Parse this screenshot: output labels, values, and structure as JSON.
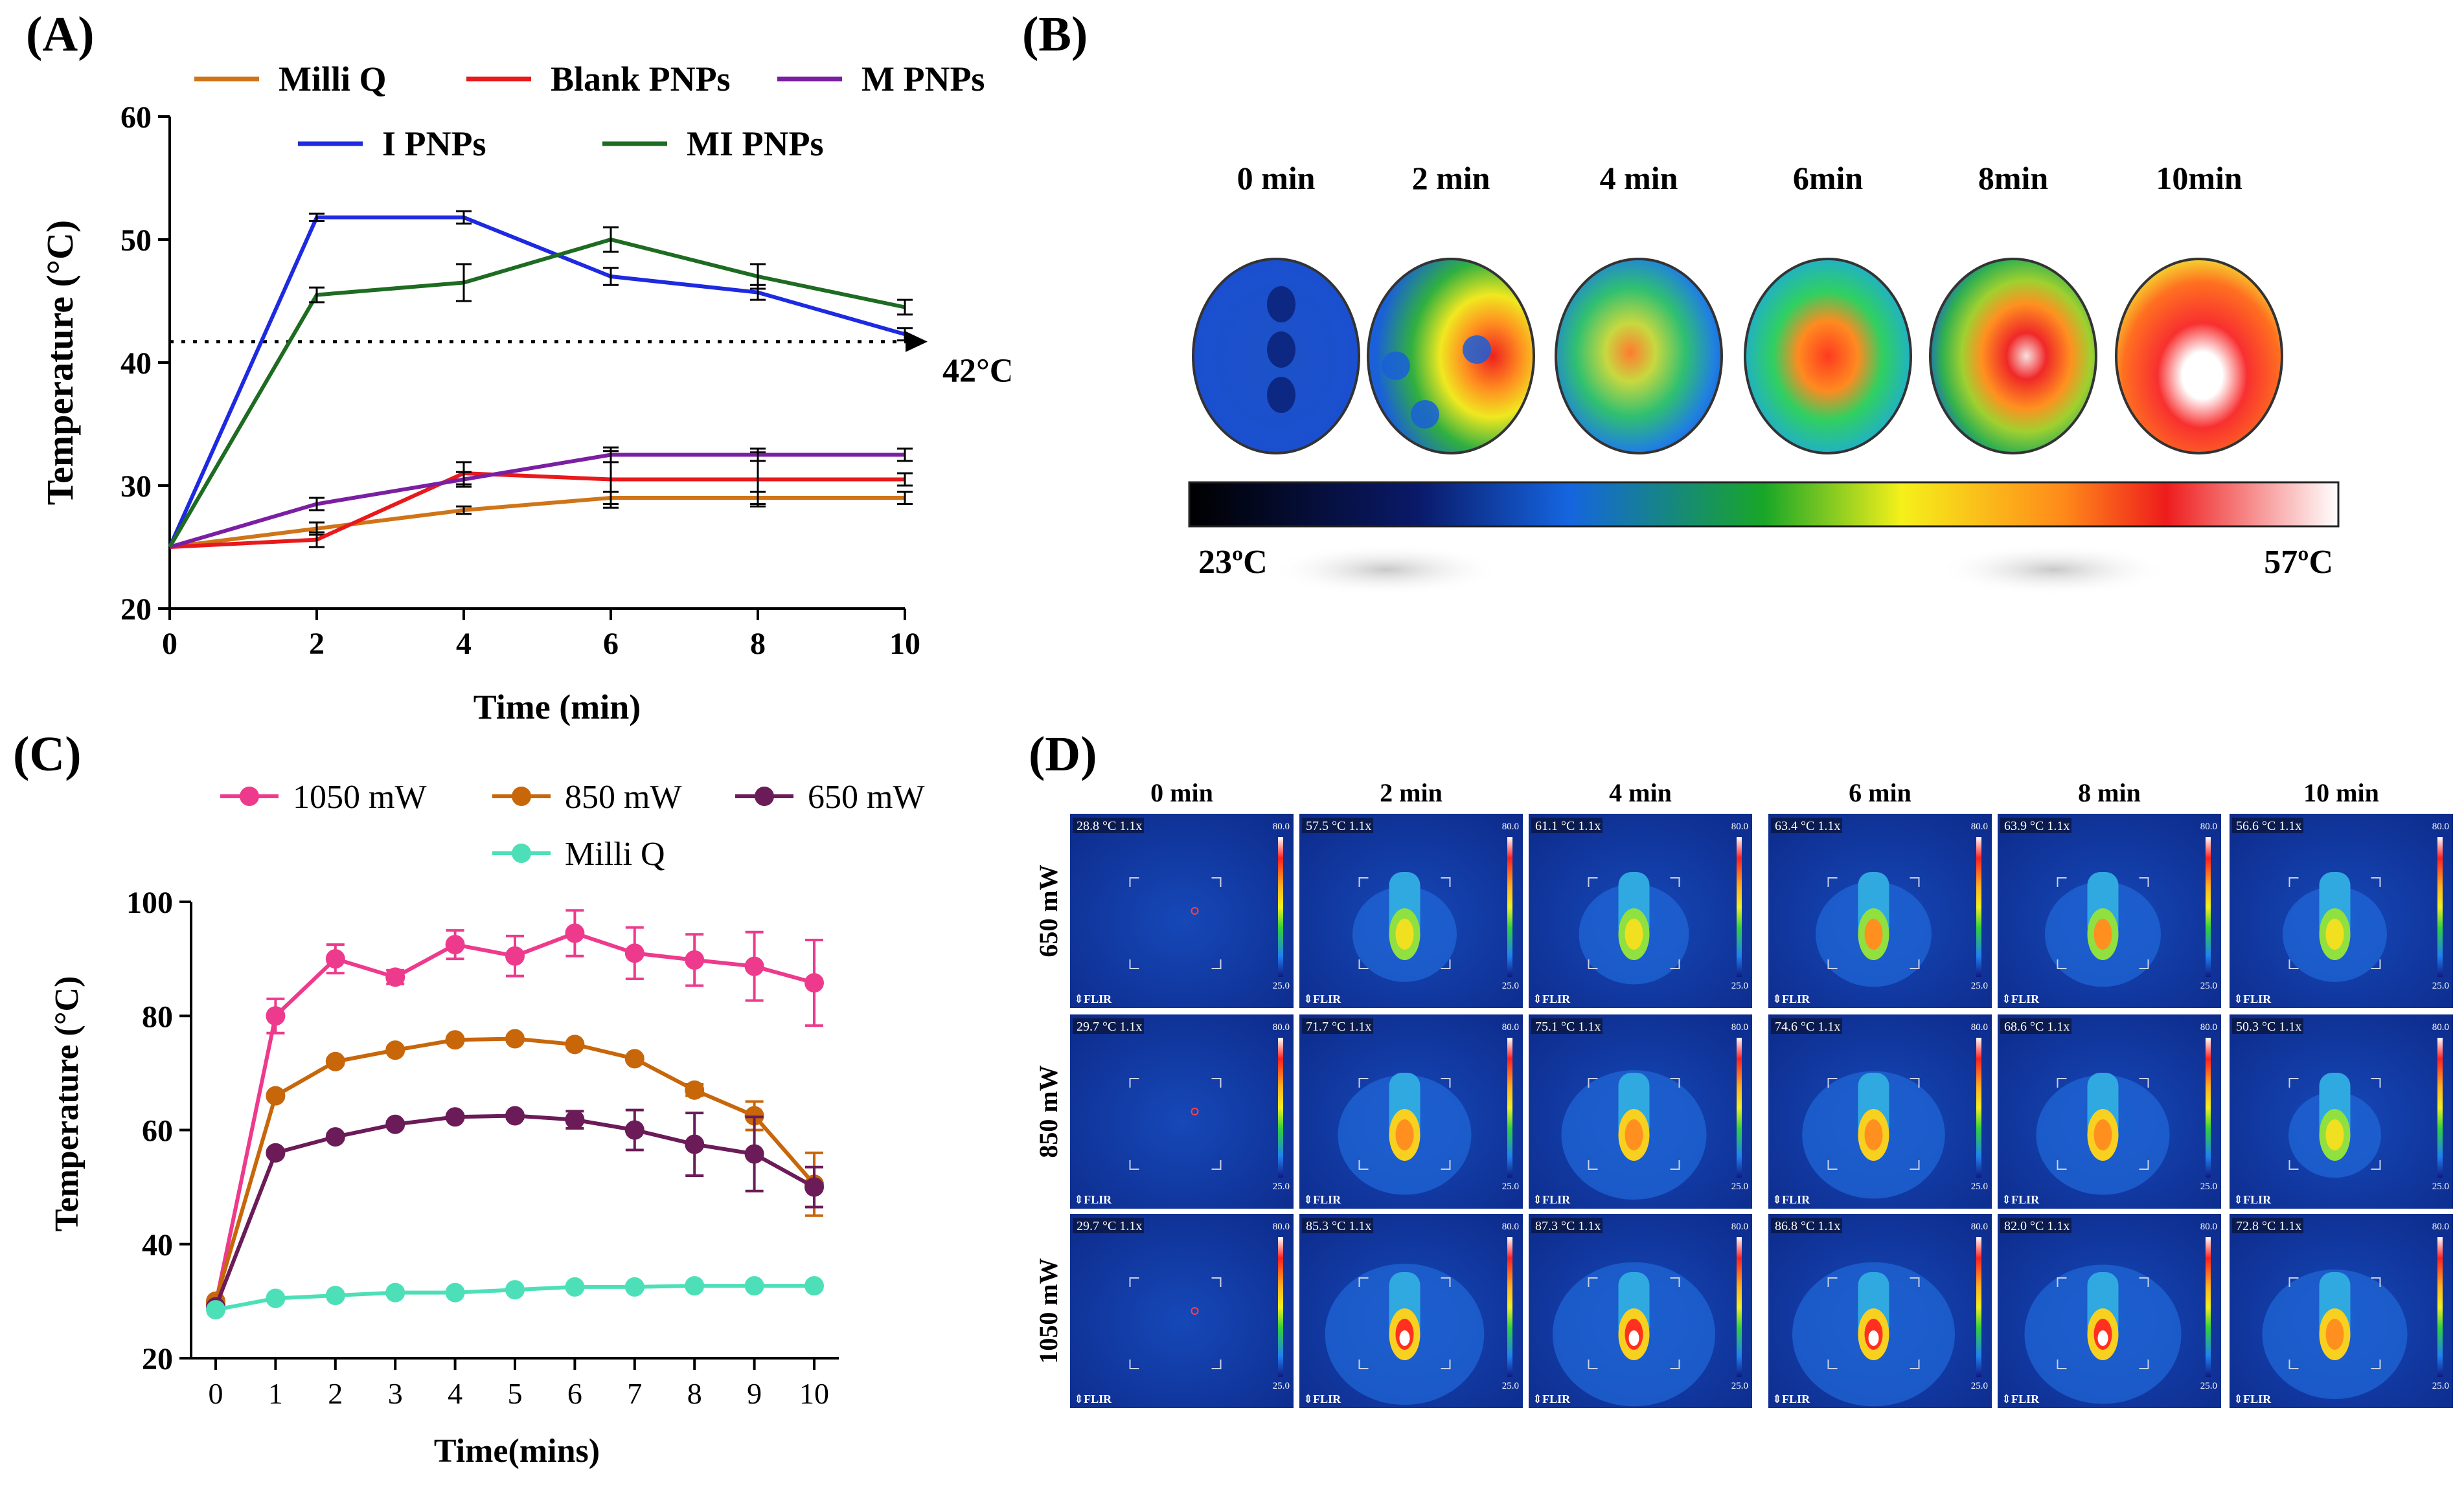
{
  "panel_labels": {
    "a": "(A)",
    "b": "(B)",
    "c": "(C)",
    "d": "(D)"
  },
  "chart_data": [
    {
      "id": "A",
      "type": "line",
      "xlabel": "Time (min)",
      "ylabel": "Temperature (°C)",
      "xlim": [
        0,
        10
      ],
      "ylim": [
        20,
        60
      ],
      "xticks": [
        0,
        2,
        4,
        6,
        8,
        10
      ],
      "yticks": [
        20,
        30,
        40,
        50,
        60
      ],
      "legend_position": "top",
      "x": [
        0,
        2,
        4,
        6,
        8,
        10
      ],
      "series": [
        {
          "name": "Milli Q",
          "color": "#d07418",
          "values": [
            25,
            26.5,
            28,
            29,
            29,
            29
          ],
          "errors": [
            0,
            0.5,
            0.3,
            0.5,
            0.5,
            0.5
          ]
        },
        {
          "name": "Blank PNPs",
          "color": "#e8191b",
          "values": [
            25,
            25.6,
            31,
            30.5,
            30.5,
            30.5
          ],
          "errors": [
            0,
            0.6,
            0.9,
            2.3,
            2.2,
            0.5
          ]
        },
        {
          "name": "M PNPs",
          "color": "#7b1fa2",
          "values": [
            25,
            28.5,
            30.5,
            32.5,
            32.5,
            32.5
          ],
          "errors": [
            0,
            0.5,
            0.6,
            0.6,
            0.5,
            0.5
          ]
        },
        {
          "name": "I PNPs",
          "color": "#1d2ae0",
          "values": [
            25,
            51.8,
            51.8,
            47,
            45.7,
            42.3
          ],
          "errors": [
            0,
            0.3,
            0.5,
            0.7,
            0.6,
            0.5
          ]
        },
        {
          "name": "MI PNPs",
          "color": "#1e6b22",
          "values": [
            25,
            45.5,
            46.5,
            50,
            47,
            44.5
          ],
          "errors": [
            0,
            0.6,
            1.5,
            1,
            1,
            0.6
          ]
        }
      ],
      "reference_line": {
        "y": 41.7,
        "label": "42°C"
      }
    },
    {
      "id": "C",
      "type": "line",
      "xlabel": "Time(mins)",
      "ylabel": "Temperature (°C)",
      "xlim": [
        0,
        10
      ],
      "ylim": [
        20,
        100
      ],
      "xticks": [
        0,
        1,
        2,
        3,
        4,
        5,
        6,
        7,
        8,
        9,
        10
      ],
      "yticks": [
        20,
        40,
        60,
        80,
        100
      ],
      "legend_position": "top",
      "x": [
        0,
        1,
        2,
        3,
        4,
        5,
        6,
        7,
        8,
        9,
        10
      ],
      "series": [
        {
          "name": "1050 mW",
          "color": "#ee3a8c",
          "values": [
            29.5,
            80,
            90,
            86.8,
            92.5,
            90.5,
            94.5,
            91,
            89.8,
            88.7,
            85.8
          ],
          "errors": [
            0,
            3,
            2.5,
            1.2,
            2.5,
            3.5,
            4,
            4.5,
            4.5,
            6,
            7.5
          ]
        },
        {
          "name": "850 mW",
          "color": "#c8660a",
          "values": [
            30,
            66,
            72,
            74,
            75.8,
            76,
            75,
            72.5,
            67,
            62.5,
            50.5
          ],
          "errors": [
            0,
            0.5,
            0.5,
            0.5,
            0.5,
            0.5,
            0.5,
            0.5,
            1,
            2.5,
            5.5
          ]
        },
        {
          "name": "650 mW",
          "color": "#6a1b58",
          "values": [
            29,
            56,
            58.8,
            61,
            62.3,
            62.5,
            61.8,
            60,
            57.5,
            55.8,
            50
          ],
          "errors": [
            0,
            0.5,
            0.5,
            0.5,
            0.5,
            0.5,
            1.5,
            3.5,
            5.5,
            6.5,
            3.5
          ]
        },
        {
          "name": "Milli Q",
          "color": "#4de0b8",
          "values": [
            28.5,
            30.5,
            31,
            31.5,
            31.5,
            32,
            32.5,
            32.5,
            32.7,
            32.7,
            32.7
          ],
          "errors": [
            0,
            0.3,
            0.3,
            0.3,
            0.3,
            0.3,
            0.3,
            0.3,
            0.3,
            0.3,
            0.3
          ]
        }
      ]
    }
  ],
  "panel_b": {
    "times": [
      "0 min",
      "2 min",
      "4 min",
      "6min",
      "8min",
      "10min"
    ],
    "scale_min": "23ºC",
    "scale_max": "57ºC"
  },
  "panel_d": {
    "times": [
      "0 min",
      "2 min",
      "4 min",
      "6 min",
      "8 min",
      "10 min"
    ],
    "rows": [
      {
        "label": "650 mW",
        "readings": [
          "28.8",
          "57.5",
          "61.1",
          "63.4",
          "63.9",
          "56.6"
        ],
        "heat": [
          0,
          0.45,
          0.5,
          0.55,
          0.55,
          0.45
        ]
      },
      {
        "label": "850 mW",
        "readings": [
          "29.7",
          "71.7",
          "75.1",
          "74.6",
          "68.6",
          "50.3"
        ],
        "heat": [
          0,
          0.7,
          0.8,
          0.78,
          0.7,
          0.35
        ]
      },
      {
        "label": "1050 mW",
        "readings": [
          "29.7",
          "85.3",
          "87.3",
          "86.8",
          "82.0",
          "72.8"
        ],
        "heat": [
          0,
          0.92,
          0.95,
          0.95,
          0.9,
          0.8
        ]
      }
    ],
    "unit": "°C",
    "zoom": "1.1x",
    "scale_top": "80.0",
    "scale_bottom": "25.0",
    "brand": "FLIR"
  }
}
